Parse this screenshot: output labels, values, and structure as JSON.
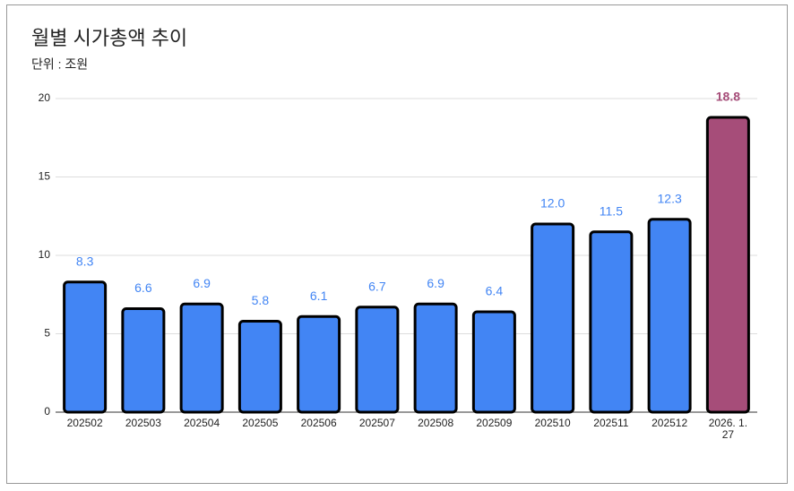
{
  "chart_data": {
    "type": "bar",
    "title": "월별 시가총액 추이",
    "subtitle": "단위 : 조원",
    "categories": [
      "202502",
      "202503",
      "202504",
      "202505",
      "202506",
      "202507",
      "202508",
      "202509",
      "202510",
      "202511",
      "202512",
      "2026. 1. 27"
    ],
    "values": [
      8.3,
      6.6,
      6.9,
      5.8,
      6.1,
      6.7,
      6.9,
      6.4,
      12.0,
      11.5,
      12.3,
      18.8
    ],
    "value_labels": [
      "8.3",
      "6.6",
      "6.9",
      "5.8",
      "6.1",
      "6.7",
      "6.9",
      "6.4",
      "12.0",
      "11.5",
      "12.3",
      "18.8"
    ],
    "colors": [
      "#4285f4",
      "#4285f4",
      "#4285f4",
      "#4285f4",
      "#4285f4",
      "#4285f4",
      "#4285f4",
      "#4285f4",
      "#4285f4",
      "#4285f4",
      "#4285f4",
      "#a64d79"
    ],
    "ylim": [
      0,
      20
    ],
    "yticks": [
      0,
      5,
      10,
      15,
      20
    ],
    "grid": true
  }
}
